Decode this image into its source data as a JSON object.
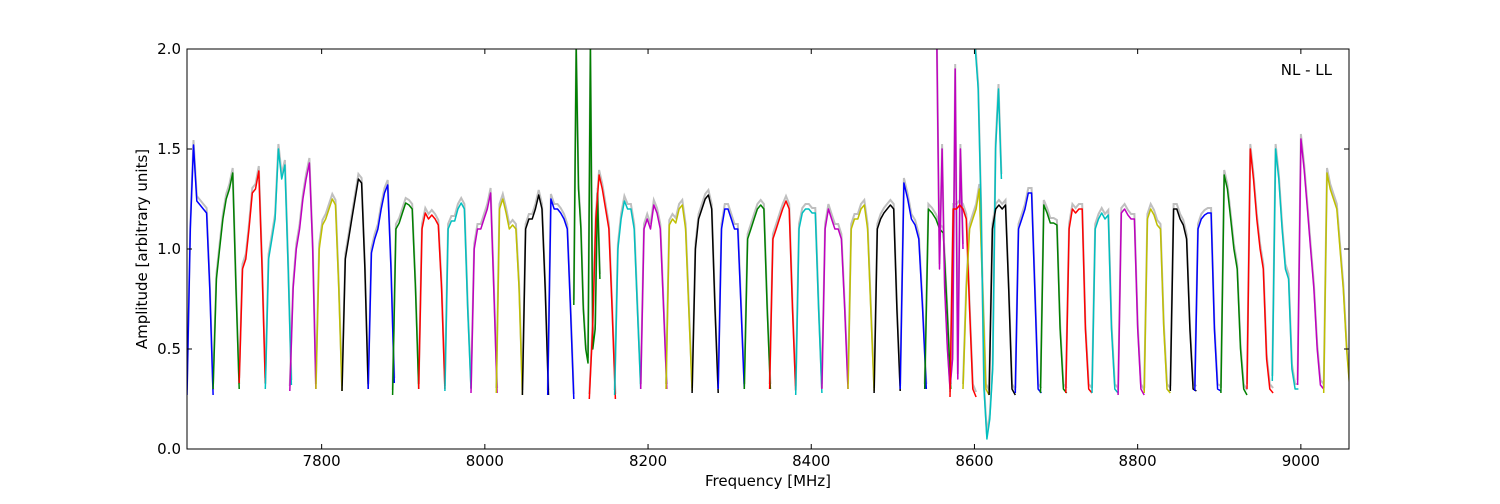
{
  "chart_data": {
    "type": "line",
    "title": "",
    "annotation": "NL - LL",
    "xlabel": "Frequency [MHz]",
    "ylabel": "Amplitude [arbitrary units]",
    "xlim": [
      7635,
      9059
    ],
    "ylim": [
      0.0,
      2.0
    ],
    "xticks": [
      7800,
      8000,
      8200,
      8400,
      8600,
      8800,
      9000
    ],
    "xtick_labels": [
      "7800",
      "8000",
      "8200",
      "8400",
      "8600",
      "8800",
      "9000"
    ],
    "yticks": [
      0.0,
      0.5,
      1.0,
      1.5,
      2.0
    ],
    "ytick_labels": [
      "0.0",
      "0.5",
      "1.0",
      "1.5",
      "2.0"
    ],
    "grid": false,
    "reference_color": "#bfbfbf",
    "colors": {
      "b": "#0000ff",
      "g": "#008000",
      "r": "#ff0000",
      "c": "#00bfbf",
      "m": "#bf00bf",
      "y": "#bfbf00",
      "k": "#000000"
    },
    "segment_width_mhz": 32,
    "segments": [
      {
        "start": 7635,
        "color": "b",
        "values": [
          0.27,
          1.1,
          1.52,
          1.24,
          1.22,
          1.2,
          1.18,
          0.8,
          0.27
        ]
      },
      {
        "start": 7667,
        "color": "g",
        "values": [
          0.3,
          0.85,
          1.0,
          1.15,
          1.25,
          1.3,
          1.38,
          0.8,
          0.3
        ]
      },
      {
        "start": 7699,
        "color": "r",
        "values": [
          0.33,
          0.9,
          0.95,
          1.1,
          1.28,
          1.3,
          1.39,
          0.9,
          0.33
        ]
      },
      {
        "start": 7731,
        "color": "c",
        "values": [
          0.3,
          0.95,
          1.05,
          1.15,
          1.5,
          1.35,
          1.42,
          0.9,
          0.32
        ]
      },
      {
        "start": 7761,
        "color": "m",
        "values": [
          0.29,
          0.8,
          1.0,
          1.1,
          1.25,
          1.35,
          1.43,
          1.0,
          0.3
        ]
      },
      {
        "start": 7793,
        "color": "y",
        "values": [
          0.3,
          1.0,
          1.12,
          1.15,
          1.2,
          1.25,
          1.22,
          0.8,
          0.29
        ]
      },
      {
        "start": 7825,
        "color": "k",
        "values": [
          0.29,
          0.95,
          1.05,
          1.15,
          1.25,
          1.35,
          1.33,
          0.9,
          0.3
        ]
      },
      {
        "start": 7857,
        "color": "b",
        "values": [
          0.3,
          0.98,
          1.05,
          1.1,
          1.2,
          1.28,
          1.32,
          0.9,
          0.33
        ]
      },
      {
        "start": 7887,
        "color": "g",
        "values": [
          0.27,
          1.1,
          1.13,
          1.18,
          1.23,
          1.22,
          1.2,
          0.8,
          0.3
        ]
      },
      {
        "start": 7919,
        "color": "r",
        "values": [
          0.3,
          1.1,
          1.18,
          1.15,
          1.17,
          1.15,
          1.12,
          0.8,
          0.3
        ]
      },
      {
        "start": 7951,
        "color": "c",
        "values": [
          0.29,
          1.1,
          1.14,
          1.14,
          1.2,
          1.23,
          1.2,
          0.7,
          0.3
        ]
      },
      {
        "start": 7983,
        "color": "m",
        "values": [
          0.28,
          1.0,
          1.1,
          1.1,
          1.15,
          1.2,
          1.28,
          0.8,
          0.28
        ]
      },
      {
        "start": 8014,
        "color": "y",
        "values": [
          0.28,
          1.2,
          1.25,
          1.18,
          1.1,
          1.12,
          1.1,
          0.8,
          0.27
        ]
      },
      {
        "start": 8046,
        "color": "k",
        "values": [
          0.27,
          1.1,
          1.15,
          1.15,
          1.2,
          1.27,
          1.2,
          0.8,
          0.27
        ]
      },
      {
        "start": 8077,
        "color": "b",
        "values": [
          0.27,
          1.25,
          1.2,
          1.2,
          1.18,
          1.15,
          1.1,
          0.7,
          0.25
        ]
      },
      {
        "start": 8109,
        "color": "g",
        "values": [
          0.72,
          2.0,
          1.3,
          1.1,
          0.7,
          0.5,
          0.43,
          2.0,
          0.5,
          0.6,
          1.28,
          0.85
        ]
      },
      {
        "start": 8128,
        "color": "r",
        "values": [
          0.25,
          0.6,
          1.15,
          1.37,
          1.3,
          1.2,
          1.1,
          0.7,
          0.25
        ]
      },
      {
        "start": 8159,
        "color": "c",
        "values": [
          0.27,
          1.0,
          1.15,
          1.24,
          1.2,
          1.2,
          1.1,
          0.7,
          0.3
        ]
      },
      {
        "start": 8191,
        "color": "m",
        "values": [
          0.3,
          1.1,
          1.15,
          1.1,
          1.22,
          1.18,
          1.1,
          0.7,
          0.3
        ]
      },
      {
        "start": 8222,
        "color": "y",
        "values": [
          0.3,
          1.12,
          1.15,
          1.13,
          1.2,
          1.22,
          1.1,
          0.7,
          0.29
        ]
      },
      {
        "start": 8254,
        "color": "k",
        "values": [
          0.28,
          1.0,
          1.15,
          1.2,
          1.25,
          1.27,
          1.2,
          0.7,
          0.28
        ]
      },
      {
        "start": 8286,
        "color": "b",
        "values": [
          0.3,
          1.1,
          1.2,
          1.2,
          1.15,
          1.1,
          1.1,
          0.7,
          0.3
        ]
      },
      {
        "start": 8318,
        "color": "g",
        "values": [
          0.3,
          1.05,
          1.1,
          1.15,
          1.2,
          1.22,
          1.2,
          0.7,
          0.3
        ]
      },
      {
        "start": 8349,
        "color": "r",
        "values": [
          0.3,
          1.05,
          1.1,
          1.15,
          1.2,
          1.24,
          1.2,
          0.7,
          0.29
        ]
      },
      {
        "start": 8381,
        "color": "c",
        "values": [
          0.27,
          1.1,
          1.18,
          1.2,
          1.2,
          1.18,
          1.18,
          0.7,
          0.28
        ]
      },
      {
        "start": 8413,
        "color": "m",
        "values": [
          0.3,
          1.1,
          1.2,
          1.15,
          1.1,
          1.1,
          1.05,
          0.7,
          0.3
        ]
      },
      {
        "start": 8445,
        "color": "y",
        "values": [
          0.3,
          1.1,
          1.15,
          1.15,
          1.2,
          1.22,
          1.1,
          0.7,
          0.29
        ]
      },
      {
        "start": 8477,
        "color": "k",
        "values": [
          0.28,
          1.1,
          1.15,
          1.18,
          1.2,
          1.22,
          1.2,
          0.7,
          0.29
        ]
      },
      {
        "start": 8509,
        "color": "b",
        "values": [
          0.3,
          1.33,
          1.25,
          1.15,
          1.12,
          1.05,
          0.7,
          0.3
        ]
      },
      {
        "start": 8539,
        "color": "g",
        "values": [
          0.3,
          1.2,
          1.18,
          1.15,
          1.1,
          1.08,
          0.7,
          0.3
        ]
      },
      {
        "start": 8554,
        "color": "m",
        "values": [
          2.0,
          0.9,
          1.5,
          0.8,
          0.5,
          0.3,
          0.45,
          1.9,
          0.35,
          1.5,
          1.0
        ]
      },
      {
        "start": 8570,
        "color": "r",
        "values": [
          0.26,
          1.2,
          1.2,
          1.22,
          1.2,
          1.15,
          0.7,
          0.3,
          0.26
        ]
      },
      {
        "start": 8586,
        "color": "y",
        "values": [
          0.3,
          0.8,
          1.1,
          1.15,
          1.2,
          1.3,
          0.8,
          0.3,
          0.27
        ]
      },
      {
        "start": 8601,
        "color": "c",
        "values": [
          2.0,
          1.8,
          1.2,
          0.3,
          0.05,
          0.15,
          0.4,
          1.5,
          1.8,
          1.35
        ]
      },
      {
        "start": 8618,
        "color": "k",
        "values": [
          0.27,
          1.1,
          1.2,
          1.22,
          1.2,
          1.22,
          0.8,
          0.3,
          0.27
        ]
      },
      {
        "start": 8650,
        "color": "b",
        "values": [
          0.28,
          1.1,
          1.15,
          1.2,
          1.28,
          1.28,
          0.8,
          0.3,
          0.28
        ]
      },
      {
        "start": 8681,
        "color": "g",
        "values": [
          0.28,
          1.22,
          1.18,
          1.13,
          1.13,
          1.12,
          0.6,
          0.3,
          0.28
        ]
      },
      {
        "start": 8712,
        "color": "r",
        "values": [
          0.28,
          1.1,
          1.2,
          1.18,
          1.2,
          1.2,
          0.6,
          0.3,
          0.28
        ]
      },
      {
        "start": 8744,
        "color": "c",
        "values": [
          0.28,
          1.1,
          1.15,
          1.18,
          1.15,
          1.17,
          0.6,
          0.3,
          0.28
        ]
      },
      {
        "start": 8776,
        "color": "m",
        "values": [
          0.27,
          1.18,
          1.2,
          1.17,
          1.15,
          1.15,
          0.6,
          0.3,
          0.27
        ]
      },
      {
        "start": 8808,
        "color": "y",
        "values": [
          0.28,
          1.15,
          1.2,
          1.17,
          1.12,
          1.1,
          0.6,
          0.3,
          0.28
        ]
      },
      {
        "start": 8840,
        "color": "k",
        "values": [
          0.29,
          1.2,
          1.2,
          1.15,
          1.12,
          1.05,
          0.6,
          0.3,
          0.29
        ]
      },
      {
        "start": 8870,
        "color": "b",
        "values": [
          0.29,
          1.1,
          1.15,
          1.17,
          1.18,
          1.18,
          0.6,
          0.3,
          0.29
        ]
      },
      {
        "start": 8902,
        "color": "g",
        "values": [
          0.28,
          1.37,
          1.3,
          1.15,
          1.0,
          0.9,
          0.5,
          0.3,
          0.27
        ]
      },
      {
        "start": 8934,
        "color": "r",
        "values": [
          0.3,
          1.5,
          1.35,
          1.15,
          1.0,
          0.9,
          0.45,
          0.3,
          0.28
        ]
      },
      {
        "start": 8965,
        "color": "c",
        "values": [
          0.34,
          1.5,
          1.35,
          1.1,
          0.9,
          0.85,
          0.4,
          0.3,
          0.3
        ]
      },
      {
        "start": 8996,
        "color": "m",
        "values": [
          0.32,
          1.55,
          1.4,
          1.2,
          1.0,
          0.8,
          0.5,
          0.32,
          0.3
        ]
      },
      {
        "start": 9028,
        "color": "y",
        "values": [
          0.28,
          1.38,
          1.3,
          1.25,
          1.2,
          1.0,
          0.8,
          0.5,
          0.3
        ]
      }
    ]
  }
}
